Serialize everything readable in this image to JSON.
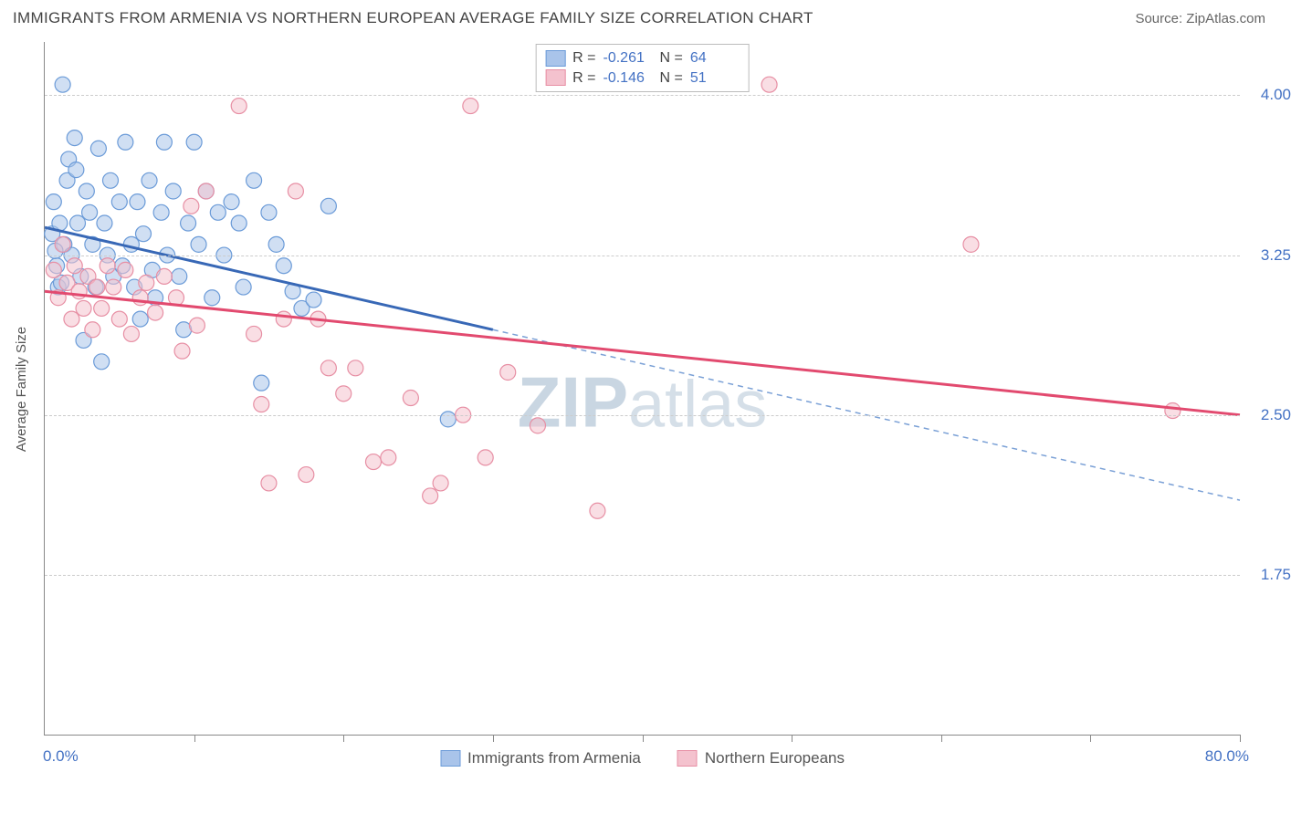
{
  "header": {
    "title": "IMMIGRANTS FROM ARMENIA VS NORTHERN EUROPEAN AVERAGE FAMILY SIZE CORRELATION CHART",
    "source": "Source: ZipAtlas.com"
  },
  "ylabel": "Average Family Size",
  "xlim_labels": {
    "min": "0.0%",
    "max": "80.0%"
  },
  "xlim": [
    0,
    80
  ],
  "ylim": [
    1.0,
    4.25
  ],
  "xtick_step": 10,
  "y_gridlines": [
    4.0,
    3.25,
    2.5,
    1.75
  ],
  "y_gridline_labels": [
    "4.00",
    "3.25",
    "2.50",
    "1.75"
  ],
  "grid_color": "#cccccc",
  "axis_color": "#888888",
  "background_color": "#ffffff",
  "tick_label_color": "#4472c4",
  "text_color": "#555555",
  "watermark": {
    "prefix": "ZIP",
    "suffix": "atlas",
    "color": "#d5dfe8"
  },
  "legend_top": {
    "border_color": "#bbbbbb",
    "rows": [
      {
        "swatch_fill": "#a9c4ea",
        "swatch_border": "#6b9bd8",
        "r_label": "R =",
        "r_value": "-0.261",
        "n_label": "N =",
        "n_value": "64"
      },
      {
        "swatch_fill": "#f4c2ce",
        "swatch_border": "#e78fa4",
        "r_label": "R =",
        "r_value": "-0.146",
        "n_label": "N =",
        "n_value": "51"
      }
    ]
  },
  "legend_bottom": {
    "items": [
      {
        "swatch_fill": "#a9c4ea",
        "swatch_border": "#6b9bd8",
        "label": "Immigrants from Armenia"
      },
      {
        "swatch_fill": "#f4c2ce",
        "swatch_border": "#e78fa4",
        "label": "Northern Europeans"
      }
    ]
  },
  "series": [
    {
      "name": "armenia",
      "point_fill": "#a9c4ea",
      "point_stroke": "#6b9bd8",
      "point_fill_opacity": 0.55,
      "point_radius": 8.5,
      "line_color": "#3868b6",
      "line_width": 3,
      "dash_color": "#7aa0d6",
      "trend_solid": {
        "x1": 0,
        "y1": 3.38,
        "x2": 30,
        "y2": 2.9
      },
      "trend_dash": {
        "x1": 30,
        "y1": 2.9,
        "x2": 80,
        "y2": 2.1
      },
      "points": [
        [
          0.5,
          3.35
        ],
        [
          0.8,
          3.2
        ],
        [
          0.6,
          3.5
        ],
        [
          0.9,
          3.1
        ],
        [
          1.0,
          3.4
        ],
        [
          1.2,
          4.05
        ],
        [
          1.5,
          3.6
        ],
        [
          1.3,
          3.3
        ],
        [
          1.6,
          3.7
        ],
        [
          1.8,
          3.25
        ],
        [
          2.0,
          3.8
        ],
        [
          2.2,
          3.4
        ],
        [
          2.4,
          3.15
        ],
        [
          2.6,
          2.85
        ],
        [
          2.8,
          3.55
        ],
        [
          3.0,
          3.45
        ],
        [
          3.2,
          3.3
        ],
        [
          3.4,
          3.1
        ],
        [
          3.6,
          3.75
        ],
        [
          3.8,
          2.75
        ],
        [
          4.0,
          3.4
        ],
        [
          4.2,
          3.25
        ],
        [
          4.4,
          3.6
        ],
        [
          4.6,
          3.15
        ],
        [
          5.0,
          3.5
        ],
        [
          5.2,
          3.2
        ],
        [
          5.4,
          3.78
        ],
        [
          5.8,
          3.3
        ],
        [
          6.0,
          3.1
        ],
        [
          6.2,
          3.5
        ],
        [
          6.4,
          2.95
        ],
        [
          6.6,
          3.35
        ],
        [
          7.0,
          3.6
        ],
        [
          7.2,
          3.18
        ],
        [
          7.4,
          3.05
        ],
        [
          7.8,
          3.45
        ],
        [
          8.0,
          3.78
        ],
        [
          8.2,
          3.25
        ],
        [
          8.6,
          3.55
        ],
        [
          9.0,
          3.15
        ],
        [
          9.3,
          2.9
        ],
        [
          9.6,
          3.4
        ],
        [
          10.0,
          3.78
        ],
        [
          10.3,
          3.3
        ],
        [
          10.8,
          3.55
        ],
        [
          11.2,
          3.05
        ],
        [
          11.6,
          3.45
        ],
        [
          12.0,
          3.25
        ],
        [
          12.5,
          3.5
        ],
        [
          13.0,
          3.4
        ],
        [
          13.3,
          3.1
        ],
        [
          14.0,
          3.6
        ],
        [
          14.5,
          2.65
        ],
        [
          15.0,
          3.45
        ],
        [
          15.5,
          3.3
        ],
        [
          16.0,
          3.2
        ],
        [
          16.6,
          3.08
        ],
        [
          17.2,
          3.0
        ],
        [
          18.0,
          3.04
        ],
        [
          19.0,
          3.48
        ],
        [
          27.0,
          2.48
        ],
        [
          0.7,
          3.27
        ],
        [
          1.1,
          3.12
        ],
        [
          2.1,
          3.65
        ]
      ]
    },
    {
      "name": "northern_eu",
      "point_fill": "#f4c2ce",
      "point_stroke": "#e78fa4",
      "point_fill_opacity": 0.55,
      "point_radius": 8.5,
      "line_color": "#e24a6f",
      "line_width": 3,
      "dash_color": "#e78fa4",
      "trend_solid": {
        "x1": 0,
        "y1": 3.08,
        "x2": 80,
        "y2": 2.5
      },
      "trend_dash": null,
      "points": [
        [
          0.6,
          3.18
        ],
        [
          0.9,
          3.05
        ],
        [
          1.2,
          3.3
        ],
        [
          1.5,
          3.12
        ],
        [
          1.8,
          2.95
        ],
        [
          2.0,
          3.2
        ],
        [
          2.3,
          3.08
        ],
        [
          2.6,
          3.0
        ],
        [
          2.9,
          3.15
        ],
        [
          3.2,
          2.9
        ],
        [
          3.5,
          3.1
        ],
        [
          3.8,
          3.0
        ],
        [
          4.2,
          3.2
        ],
        [
          4.6,
          3.1
        ],
        [
          5.0,
          2.95
        ],
        [
          5.4,
          3.18
        ],
        [
          5.8,
          2.88
        ],
        [
          6.4,
          3.05
        ],
        [
          6.8,
          3.12
        ],
        [
          7.4,
          2.98
        ],
        [
          8.0,
          3.15
        ],
        [
          8.8,
          3.05
        ],
        [
          9.2,
          2.8
        ],
        [
          9.8,
          3.48
        ],
        [
          10.2,
          2.92
        ],
        [
          10.8,
          3.55
        ],
        [
          13.0,
          3.95
        ],
        [
          14.0,
          2.88
        ],
        [
          14.5,
          2.55
        ],
        [
          15.0,
          2.18
        ],
        [
          16.0,
          2.95
        ],
        [
          16.8,
          3.55
        ],
        [
          17.5,
          2.22
        ],
        [
          18.3,
          2.95
        ],
        [
          19.0,
          2.72
        ],
        [
          20.0,
          2.6
        ],
        [
          20.8,
          2.72
        ],
        [
          22.0,
          2.28
        ],
        [
          23.0,
          2.3
        ],
        [
          24.5,
          2.58
        ],
        [
          25.8,
          2.12
        ],
        [
          26.5,
          2.18
        ],
        [
          28.0,
          2.5
        ],
        [
          28.5,
          3.95
        ],
        [
          29.5,
          2.3
        ],
        [
          31.0,
          2.7
        ],
        [
          33.0,
          2.45
        ],
        [
          37.0,
          2.05
        ],
        [
          48.5,
          4.05
        ],
        [
          62.0,
          3.3
        ],
        [
          75.5,
          2.52
        ]
      ]
    }
  ]
}
